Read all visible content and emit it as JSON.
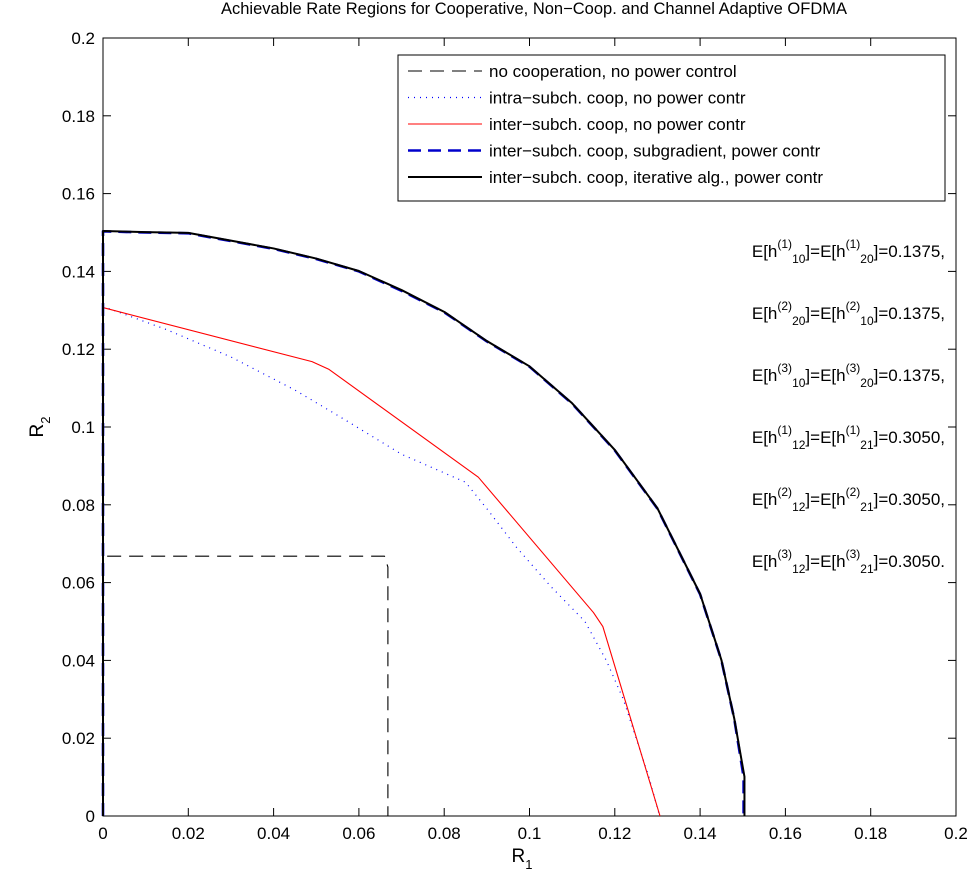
{
  "chart_data": {
    "type": "line",
    "title": "Achievable Rate Regions for Cooperative, Non−Coop. and Channel Adaptive OFDMA",
    "xlabel": "R",
    "xlabel_sub": "1",
    "ylabel": "R",
    "ylabel_sub": "2",
    "xlim": [
      0,
      0.2
    ],
    "ylim": [
      0,
      0.2
    ],
    "x_ticks": [
      0,
      0.02,
      0.04,
      0.06,
      0.08,
      0.1,
      0.12,
      0.14,
      0.16,
      0.18,
      0.2
    ],
    "y_ticks": [
      0,
      0.02,
      0.04,
      0.06,
      0.08,
      0.1,
      0.12,
      0.14,
      0.16,
      0.18,
      0.2
    ],
    "x_tick_labels": [
      "0",
      "0.02",
      "0.04",
      "0.06",
      "0.08",
      "0.1",
      "0.12",
      "0.14",
      "0.16",
      "0.18",
      "0.2"
    ],
    "y_tick_labels": [
      "0",
      "0.02",
      "0.04",
      "0.06",
      "0.08",
      "0.1",
      "0.12",
      "0.14",
      "0.16",
      "0.18",
      "0.2"
    ],
    "grid": false,
    "legend_position": "top-right",
    "series": [
      {
        "name": "no cooperation, no power control",
        "color": "#000000",
        "style": "dashed",
        "points": [
          [
            0,
            0
          ],
          [
            0,
            0.0668
          ],
          [
            0.066,
            0.0668
          ],
          [
            0.0668,
            0.064
          ],
          [
            0.0668,
            0
          ]
        ]
      },
      {
        "name": "intra−subch. coop, no power contr",
        "color": "#0000ff",
        "style": "dotted",
        "points": [
          [
            0,
            0.131
          ],
          [
            0.015,
            0.125
          ],
          [
            0.03,
            0.118
          ],
          [
            0.045,
            0.1095
          ],
          [
            0.055,
            0.103
          ],
          [
            0.07,
            0.093
          ],
          [
            0.085,
            0.0858
          ],
          [
            0.09,
            0.079
          ],
          [
            0.097,
            0.069
          ],
          [
            0.105,
            0.059
          ],
          [
            0.113,
            0.05
          ],
          [
            0.118,
            0.04
          ],
          [
            0.122,
            0.03
          ],
          [
            0.125,
            0.02
          ],
          [
            0.128,
            0.01
          ],
          [
            0.1305,
            0
          ]
        ]
      },
      {
        "name": "inter−subch. coop, no power contr",
        "color": "#ff0000",
        "style": "solid",
        "points": [
          [
            0,
            0.1307
          ],
          [
            0.049,
            0.1168
          ],
          [
            0.053,
            0.1148
          ],
          [
            0.088,
            0.0871
          ],
          [
            0.115,
            0.0523
          ],
          [
            0.1172,
            0.0487
          ],
          [
            0.1306,
            0
          ]
        ]
      },
      {
        "name": "inter−subch. coop, subgradient, power contr",
        "color": "#0000cc",
        "style": "dashed-thick",
        "points": [
          [
            0,
            0
          ],
          [
            0,
            0.1503
          ],
          [
            0.01,
            0.15
          ],
          [
            0.02,
            0.1498
          ],
          [
            0.03,
            0.1478
          ],
          [
            0.04,
            0.1458
          ],
          [
            0.05,
            0.1432
          ],
          [
            0.06,
            0.14
          ],
          [
            0.07,
            0.135
          ],
          [
            0.08,
            0.1295
          ],
          [
            0.09,
            0.122
          ],
          [
            0.1,
            0.1155
          ],
          [
            0.11,
            0.106
          ],
          [
            0.12,
            0.094
          ],
          [
            0.13,
            0.079
          ],
          [
            0.14,
            0.057
          ],
          [
            0.145,
            0.04
          ],
          [
            0.148,
            0.025
          ],
          [
            0.1502,
            0.01
          ],
          [
            0.1502,
            0
          ]
        ]
      },
      {
        "name": "inter−subch. coop, iterative alg., power contr",
        "color": "#000000",
        "style": "solid-thick",
        "points": [
          [
            0,
            0
          ],
          [
            0,
            0.1504
          ],
          [
            0.01,
            0.1501
          ],
          [
            0.02,
            0.1499
          ],
          [
            0.03,
            0.1479
          ],
          [
            0.04,
            0.1459
          ],
          [
            0.05,
            0.1433
          ],
          [
            0.06,
            0.1401
          ],
          [
            0.07,
            0.1352
          ],
          [
            0.08,
            0.1296
          ],
          [
            0.09,
            0.1221
          ],
          [
            0.1,
            0.1156
          ],
          [
            0.11,
            0.1061
          ],
          [
            0.12,
            0.0941
          ],
          [
            0.13,
            0.0791
          ],
          [
            0.14,
            0.0571
          ],
          [
            0.145,
            0.0401
          ],
          [
            0.148,
            0.0251
          ],
          [
            0.1504,
            0.0101
          ],
          [
            0.1504,
            0
          ]
        ]
      }
    ],
    "annotations": [
      {
        "a": "10",
        "ea": "(1)",
        "b": "20",
        "eb": "(1)",
        "value": "=0.1375,"
      },
      {
        "a": "20",
        "ea": "(2)",
        "b": "10",
        "eb": "(2)",
        "value": "=0.1375,"
      },
      {
        "a": "10",
        "ea": "(3)",
        "b": "20",
        "eb": "(3)",
        "value": "=0.1375,"
      },
      {
        "a": "12",
        "ea": "(1)",
        "b": "21",
        "eb": "(1)",
        "value": "=0.3050,"
      },
      {
        "a": "12",
        "ea": "(2)",
        "b": "21",
        "eb": "(2)",
        "value": "=0.3050,"
      },
      {
        "a": "12",
        "ea": "(3)",
        "b": "21",
        "eb": "(3)",
        "value": "=0.3050."
      }
    ]
  }
}
